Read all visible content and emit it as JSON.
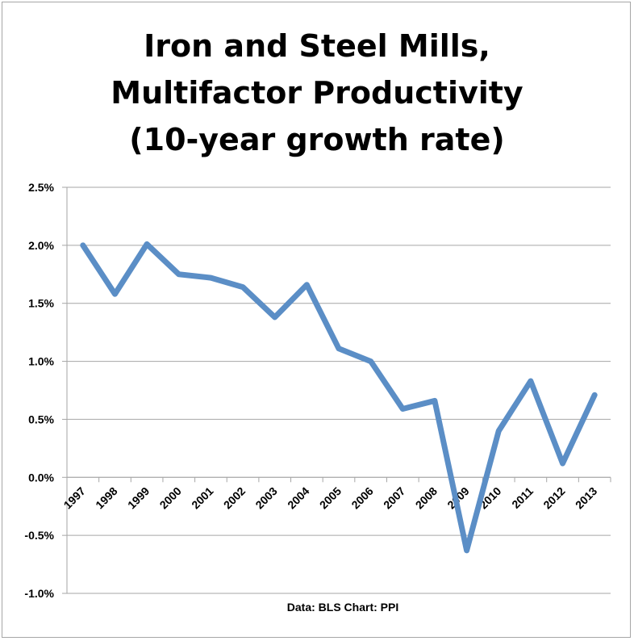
{
  "title_lines": [
    "Iron and Steel Mills,",
    "Multifactor Productivity",
    "(10-year growth rate)"
  ],
  "source_note": "Data: BLS  Chart: PPI",
  "colors": {
    "line": "#5b8ec6",
    "grid": "#a6a6a6",
    "axis": "#a6a6a6"
  },
  "chart_data": {
    "type": "line",
    "title": "Iron and Steel Mills, Multifactor Productivity (10-year growth rate)",
    "xlabel": "",
    "ylabel": "",
    "categories": [
      "1997",
      "1998",
      "1999",
      "2000",
      "2001",
      "2002",
      "2003",
      "2004",
      "2005",
      "2006",
      "2007",
      "2008",
      "2009",
      "2010",
      "2011",
      "2012",
      "2013"
    ],
    "series": [
      {
        "values": [
          2.0,
          1.58,
          2.01,
          1.75,
          1.72,
          1.64,
          1.38,
          1.66,
          1.11,
          1.0,
          0.59,
          0.66,
          -0.63,
          0.4,
          0.83,
          0.12,
          0.71
        ]
      }
    ],
    "ylim": [
      -1.0,
      2.5
    ],
    "yticks": [
      2.5,
      2.0,
      1.5,
      1.0,
      0.5,
      0.0,
      -0.5,
      -1.0
    ],
    "ytick_labels": [
      "2.5%",
      "2.0%",
      "1.5%",
      "1.0%",
      "0.5%",
      "0.0%",
      "-0.5%",
      "-1.0%"
    ],
    "grid": true,
    "legend": "none"
  }
}
